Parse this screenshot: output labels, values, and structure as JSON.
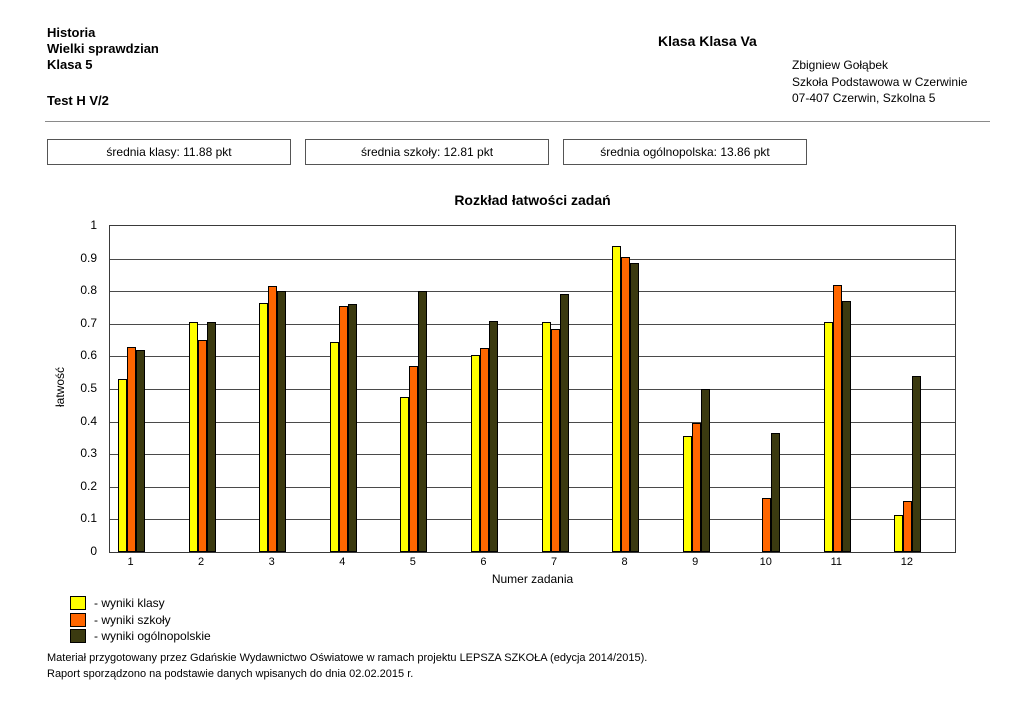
{
  "header": {
    "subject": "Historia",
    "test_name": "Wielki sprawdzian",
    "grade": "Klasa 5",
    "test_code": "Test H V/2",
    "class_label": "Klasa Klasa Va",
    "teacher": "Zbigniew Gołąbek",
    "school": "Szkoła Podstawowa w Czerwinie",
    "address": "07-407 Czerwin, Szkolna 5"
  },
  "stats": [
    {
      "label": "średnia klasy: 11.88 pkt"
    },
    {
      "label": "średnia szkoły: 12.81 pkt"
    },
    {
      "label": "średnia ogólnopolska: 13.86 pkt"
    }
  ],
  "chart_data": {
    "type": "bar",
    "title": "Rozkład łatwości zadań",
    "xlabel": "Numer zadania",
    "ylabel": "łatwość",
    "ylim": [
      0,
      1
    ],
    "yticks": [
      "0",
      "0.1",
      "0.2",
      "0.3",
      "0.4",
      "0.5",
      "0.6",
      "0.7",
      "0.8",
      "0.9",
      "1"
    ],
    "grid": true,
    "legend_position": "bottom-left",
    "categories": [
      "1",
      "2",
      "3",
      "4",
      "5",
      "6",
      "7",
      "8",
      "9",
      "10",
      "11",
      "12"
    ],
    "series": [
      {
        "name": "wyniki klasy",
        "color": "#FFFF00",
        "values": [
          0.53,
          0.705,
          0.765,
          0.645,
          0.475,
          0.605,
          0.705,
          0.94,
          0.355,
          0,
          0.705,
          0.115
        ]
      },
      {
        "name": "wyniki szkoły",
        "color": "#FF6600",
        "values": [
          0.63,
          0.65,
          0.815,
          0.755,
          0.57,
          0.625,
          0.685,
          0.905,
          0.395,
          0.165,
          0.82,
          0.155
        ]
      },
      {
        "name": "wyniki ogólnopolskie",
        "color": "#3B3A10",
        "values": [
          0.62,
          0.705,
          0.8,
          0.76,
          0.8,
          0.71,
          0.79,
          0.885,
          0.5,
          0.365,
          0.77,
          0.54
        ]
      }
    ],
    "legend": [
      "- wyniki klasy",
      "- wyniki szkoły",
      "- wyniki ogólnopolskie"
    ]
  },
  "footer": {
    "line1": "Materiał przygotowany przez Gdańskie Wydawnictwo Oświatowe w ramach projektu LEPSZA SZKOŁA (edycja 2014/2015).",
    "line2": "Raport sporządzono na podstawie danych wpisanych do dnia 02.02.2015 r."
  }
}
